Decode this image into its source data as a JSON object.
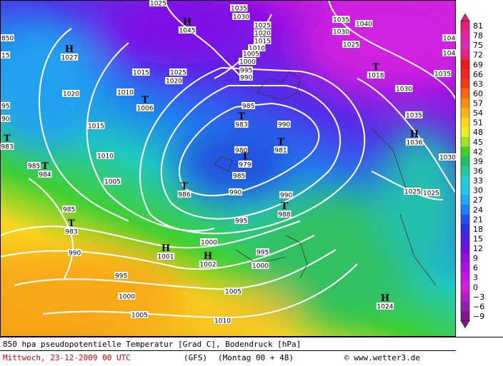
{
  "legend": {
    "labels": [
      "81",
      "78",
      "75",
      "72",
      "69",
      "66",
      "63",
      "60",
      "57",
      "54",
      "51",
      "48",
      "45",
      "42",
      "39",
      "36",
      "33",
      "30",
      "27",
      "24",
      "21",
      "18",
      "15",
      "12",
      "9",
      "6",
      "3",
      "0",
      "−3",
      "−6",
      "−9"
    ],
    "colors": [
      "#e0207a",
      "#e0289c",
      "#d82cb4",
      "#e0287a",
      "#f01818",
      "#f02828",
      "#f04010",
      "#f86410",
      "#fc8c10",
      "#fcb414",
      "#fcd81c",
      "#e8f020",
      "#a0e020",
      "#40d028",
      "#20c060",
      "#20c8a0",
      "#20d0d0",
      "#20c8f0",
      "#20a8f8",
      "#2080f8",
      "#2050f0",
      "#3030e8",
      "#5020e0",
      "#7010e0",
      "#9010e0",
      "#b010e8",
      "#c818e0",
      "#d020d8",
      "#b020c0",
      "#9020b0",
      "#801890"
    ]
  },
  "caption": {
    "line1": "850 hpa pseudopotentielle Temperatur [Grad C], Bodendruck [hPa]",
    "date": "Mittwoch, 23-12-2009  00 UTC",
    "model": "(GFS)",
    "run": "(Montag 00 + 48)",
    "credit": "© www.wetter3.de"
  },
  "isobar_labels": [
    "1025",
    "1035",
    "1030",
    "1025",
    "1020",
    "1015",
    "1010",
    "1005",
    "1000",
    "995",
    "990",
    "1035",
    "1030",
    "1040",
    "1025",
    "1015",
    "1025",
    "1020",
    "1010",
    "1020",
    "1015",
    "1010",
    "1005",
    "985",
    "990",
    "980",
    "985",
    "990",
    "995",
    "990",
    "1000",
    "995",
    "1000",
    "1005",
    "1010",
    "1005",
    "1000",
    "995",
    "990",
    "985",
    "985",
    "1030",
    "1035",
    "1030",
    "1025",
    "1025",
    "1035",
    "104",
    "104",
    "1020",
    "850",
    "15",
    "95",
    "90"
  ],
  "pressure_centers": [
    {
      "symbol": "H",
      "value": "1027"
    },
    {
      "symbol": "H",
      "value": "1045"
    },
    {
      "symbol": "T",
      "value": "1006"
    },
    {
      "symbol": "T",
      "value": "983"
    },
    {
      "symbol": "T",
      "value": "981"
    },
    {
      "symbol": "T",
      "value": "979"
    },
    {
      "symbol": "T",
      "value": "986"
    },
    {
      "symbol": "T",
      "value": "988"
    },
    {
      "symbol": "T",
      "value": "983"
    },
    {
      "symbol": "T",
      "value": "984"
    },
    {
      "symbol": "T",
      "value": "983"
    },
    {
      "symbol": "T",
      "value": "1018"
    },
    {
      "symbol": "H",
      "value": "1036"
    },
    {
      "symbol": "H",
      "value": "1001"
    },
    {
      "symbol": "H",
      "value": "1002"
    },
    {
      "symbol": "H",
      "value": "1024"
    }
  ]
}
